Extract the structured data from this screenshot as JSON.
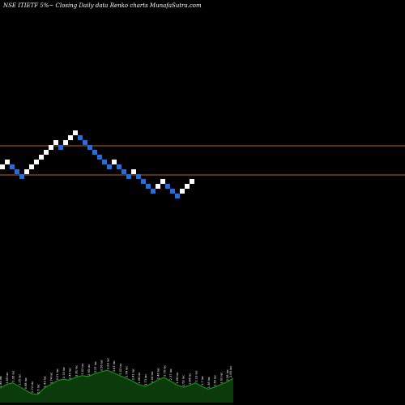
{
  "header": {
    "symbol": "NSE ITIETF",
    "percent": "5%",
    "arrow": "~",
    "description": "Closing Daily data Renko charts",
    "site": "MunafaSutra.com"
  },
  "chart_data": {
    "type": "renko",
    "title": "NSE ITIETF 5%~ Closing Daily data Renko charts MunafaSutra.com",
    "y_axis_visible": false,
    "grid": false,
    "colors": {
      "background": "#000000",
      "up_brick": "#ffffff",
      "down_brick": "#1e6fe6",
      "reference_line": "#b8621c",
      "volume_area": "#0b3a0b",
      "volume_edge": "#1aa31a"
    },
    "bricks": [
      {
        "dir": "up"
      },
      {
        "dir": "up"
      },
      {
        "dir": "down"
      },
      {
        "dir": "down"
      },
      {
        "dir": "down"
      },
      {
        "dir": "up"
      },
      {
        "dir": "up"
      },
      {
        "dir": "up"
      },
      {
        "dir": "up"
      },
      {
        "dir": "up"
      },
      {
        "dir": "up"
      },
      {
        "dir": "up"
      },
      {
        "dir": "down"
      },
      {
        "dir": "up"
      },
      {
        "dir": "up"
      },
      {
        "dir": "up"
      },
      {
        "dir": "down"
      },
      {
        "dir": "down"
      },
      {
        "dir": "down"
      },
      {
        "dir": "down"
      },
      {
        "dir": "down"
      },
      {
        "dir": "down"
      },
      {
        "dir": "down"
      },
      {
        "dir": "up"
      },
      {
        "dir": "down"
      },
      {
        "dir": "down"
      },
      {
        "dir": "down"
      },
      {
        "dir": "up"
      },
      {
        "dir": "down"
      },
      {
        "dir": "down"
      },
      {
        "dir": "down"
      },
      {
        "dir": "down"
      },
      {
        "dir": "up"
      },
      {
        "dir": "up"
      },
      {
        "dir": "down"
      },
      {
        "dir": "down"
      },
      {
        "dir": "down"
      },
      {
        "dir": "up"
      },
      {
        "dir": "up"
      },
      {
        "dir": "up"
      }
    ],
    "reference_lines": [
      "upper",
      "lower"
    ],
    "volume": [
      {
        "value": 16,
        "label": "1.46 lac"
      },
      {
        "value": 20,
        "label": "1.65 lac"
      },
      {
        "value": 22,
        "label": "1.95 lac"
      },
      {
        "value": 18,
        "label": "1.25 lac"
      },
      {
        "value": 14,
        "label": "0.98 lac"
      },
      {
        "value": 10,
        "label": "0.72 lac"
      },
      {
        "value": 9,
        "label": "0.6 lac"
      },
      {
        "value": 16,
        "label": "1.43 lac"
      },
      {
        "value": 20,
        "label": "1.74 lac"
      },
      {
        "value": 24,
        "label": "2.01 lac"
      },
      {
        "value": 26,
        "label": "2.33 lac"
      },
      {
        "value": 25,
        "label": "2.45 lac"
      },
      {
        "value": 28,
        "label": "2.81 lac"
      },
      {
        "value": 30,
        "label": "3.02 lac"
      },
      {
        "value": 29,
        "label": "2.95 lac"
      },
      {
        "value": 32,
        "label": "3.37 lac"
      },
      {
        "value": 34,
        "label": "3.56 lac"
      },
      {
        "value": 36,
        "label": "3.83 lac"
      },
      {
        "value": 33,
        "label": "3.47 lac"
      },
      {
        "value": 30,
        "label": "3.02 lac"
      },
      {
        "value": 27,
        "label": "2.78 lac"
      },
      {
        "value": 24,
        "label": "2.41 lac"
      },
      {
        "value": 20,
        "label": "1.98 lac"
      },
      {
        "value": 18,
        "label": "1.73 lac"
      },
      {
        "value": 21,
        "label": "2.04 lac"
      },
      {
        "value": 25,
        "label": "2.46 lac"
      },
      {
        "value": 28,
        "label": "2.79 lac"
      },
      {
        "value": 24,
        "label": "2.37 lac"
      },
      {
        "value": 20,
        "label": "1.96 lac"
      },
      {
        "value": 17,
        "label": "1.62 lac"
      },
      {
        "value": 19,
        "label": "1.84 lac"
      },
      {
        "value": 22,
        "label": "2.13 lac"
      },
      {
        "value": 18,
        "label": "1.7 lac"
      },
      {
        "value": 15,
        "label": "1.38 lac"
      },
      {
        "value": 17,
        "label": "1.59 lac"
      },
      {
        "value": 20,
        "label": "1.91 lac"
      },
      {
        "value": 23,
        "label": "2.26 lac"
      },
      {
        "value": 27,
        "label": "2.65 lac"
      }
    ]
  }
}
